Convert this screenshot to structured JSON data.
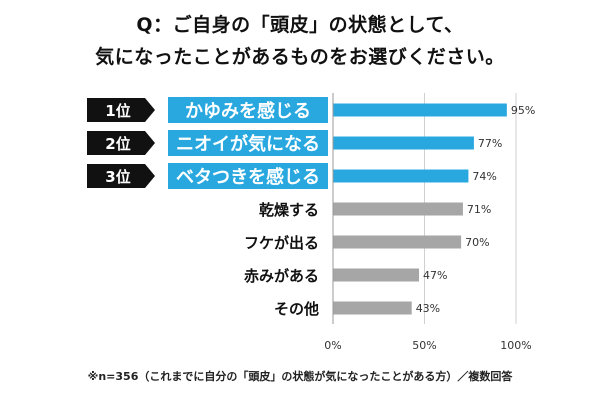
{
  "title": {
    "line1": "Q：ご自身の「頭皮」の状態として、",
    "line2": "気になったことがあるものをお選びください。"
  },
  "chart_data": {
    "type": "bar",
    "orientation": "horizontal",
    "categories": [
      "かゆみを感じる",
      "ニオイが気になる",
      "ベタつきを感じる",
      "乾燥する",
      "フケが出る",
      "赤みがある",
      "その他"
    ],
    "values": [
      95,
      77,
      74,
      71,
      70,
      47,
      43
    ],
    "value_labels": [
      "95%",
      "77%",
      "74%",
      "71%",
      "70%",
      "47%",
      "43%"
    ],
    "ranks": [
      "1位",
      "2位",
      "3位"
    ],
    "xlim": [
      0,
      100
    ],
    "xticks": [
      "0%",
      "50%",
      "100%"
    ],
    "grid": true,
    "colors": {
      "highlight": "#29a8e0",
      "normal": "#a6a6a6",
      "rank_badge": "#111111",
      "label_box": "#29a8e0"
    }
  },
  "footnote": "※n=356（これまでに自分の「頭皮」の状態が気になったことがある方）／複数回答"
}
